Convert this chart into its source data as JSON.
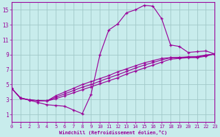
{
  "xlabel": "Windchill (Refroidissement éolien,°C)",
  "ylabel": "",
  "bg_color": "#c8ecec",
  "line_color": "#990099",
  "grid_color": "#a0c8c8",
  "xlim": [
    0,
    23
  ],
  "ylim": [
    0,
    16
  ],
  "xticks": [
    0,
    1,
    2,
    3,
    4,
    5,
    6,
    7,
    8,
    9,
    10,
    11,
    12,
    13,
    14,
    15,
    16,
    17,
    18,
    19,
    20,
    21,
    22,
    23
  ],
  "yticks": [
    1,
    3,
    5,
    7,
    9,
    11,
    13,
    15
  ],
  "curves": [
    {
      "x": [
        0,
        1,
        2,
        3,
        4,
        5,
        6,
        7,
        8,
        9,
        10,
        11,
        12,
        13,
        14,
        15,
        16,
        17,
        18,
        19,
        20,
        21,
        22,
        23
      ],
      "y": [
        4.5,
        3.2,
        2.9,
        2.6,
        2.3,
        2.2,
        2.1,
        1.6,
        1.1,
        3.7,
        9.0,
        12.3,
        13.1,
        14.6,
        15.0,
        15.6,
        15.5,
        13.8,
        10.3,
        10.1,
        9.3,
        9.4,
        9.5,
        9.1
      ]
    },
    {
      "x": [
        0,
        1,
        2,
        3,
        4,
        5,
        6,
        7,
        8,
        9,
        10,
        11,
        12,
        13,
        14,
        15,
        16,
        17,
        18,
        19,
        20,
        21,
        22,
        23
      ],
      "y": [
        4.5,
        3.2,
        2.95,
        2.85,
        2.8,
        3.1,
        3.5,
        3.9,
        4.3,
        4.7,
        5.1,
        5.5,
        5.9,
        6.4,
        6.8,
        7.2,
        7.6,
        8.0,
        8.4,
        8.5,
        8.6,
        8.6,
        8.8,
        9.1
      ]
    },
    {
      "x": [
        0,
        1,
        2,
        3,
        4,
        5,
        6,
        7,
        8,
        9,
        10,
        11,
        12,
        13,
        14,
        15,
        16,
        17,
        18,
        19,
        20,
        21,
        22,
        23
      ],
      "y": [
        4.5,
        3.2,
        2.95,
        2.85,
        2.8,
        3.3,
        3.75,
        4.2,
        4.65,
        5.0,
        5.45,
        5.9,
        6.3,
        6.75,
        7.2,
        7.6,
        7.95,
        8.3,
        8.6,
        8.6,
        8.7,
        8.7,
        8.9,
        9.1
      ]
    },
    {
      "x": [
        0,
        1,
        2,
        3,
        4,
        5,
        6,
        7,
        8,
        9,
        10,
        11,
        12,
        13,
        14,
        15,
        16,
        17,
        18,
        19,
        20,
        21,
        22,
        23
      ],
      "y": [
        4.5,
        3.2,
        2.95,
        2.85,
        2.8,
        3.5,
        4.0,
        4.5,
        5.0,
        5.4,
        5.8,
        6.2,
        6.7,
        7.1,
        7.5,
        7.9,
        8.2,
        8.5,
        8.6,
        8.65,
        8.7,
        8.75,
        8.95,
        9.1
      ]
    }
  ]
}
